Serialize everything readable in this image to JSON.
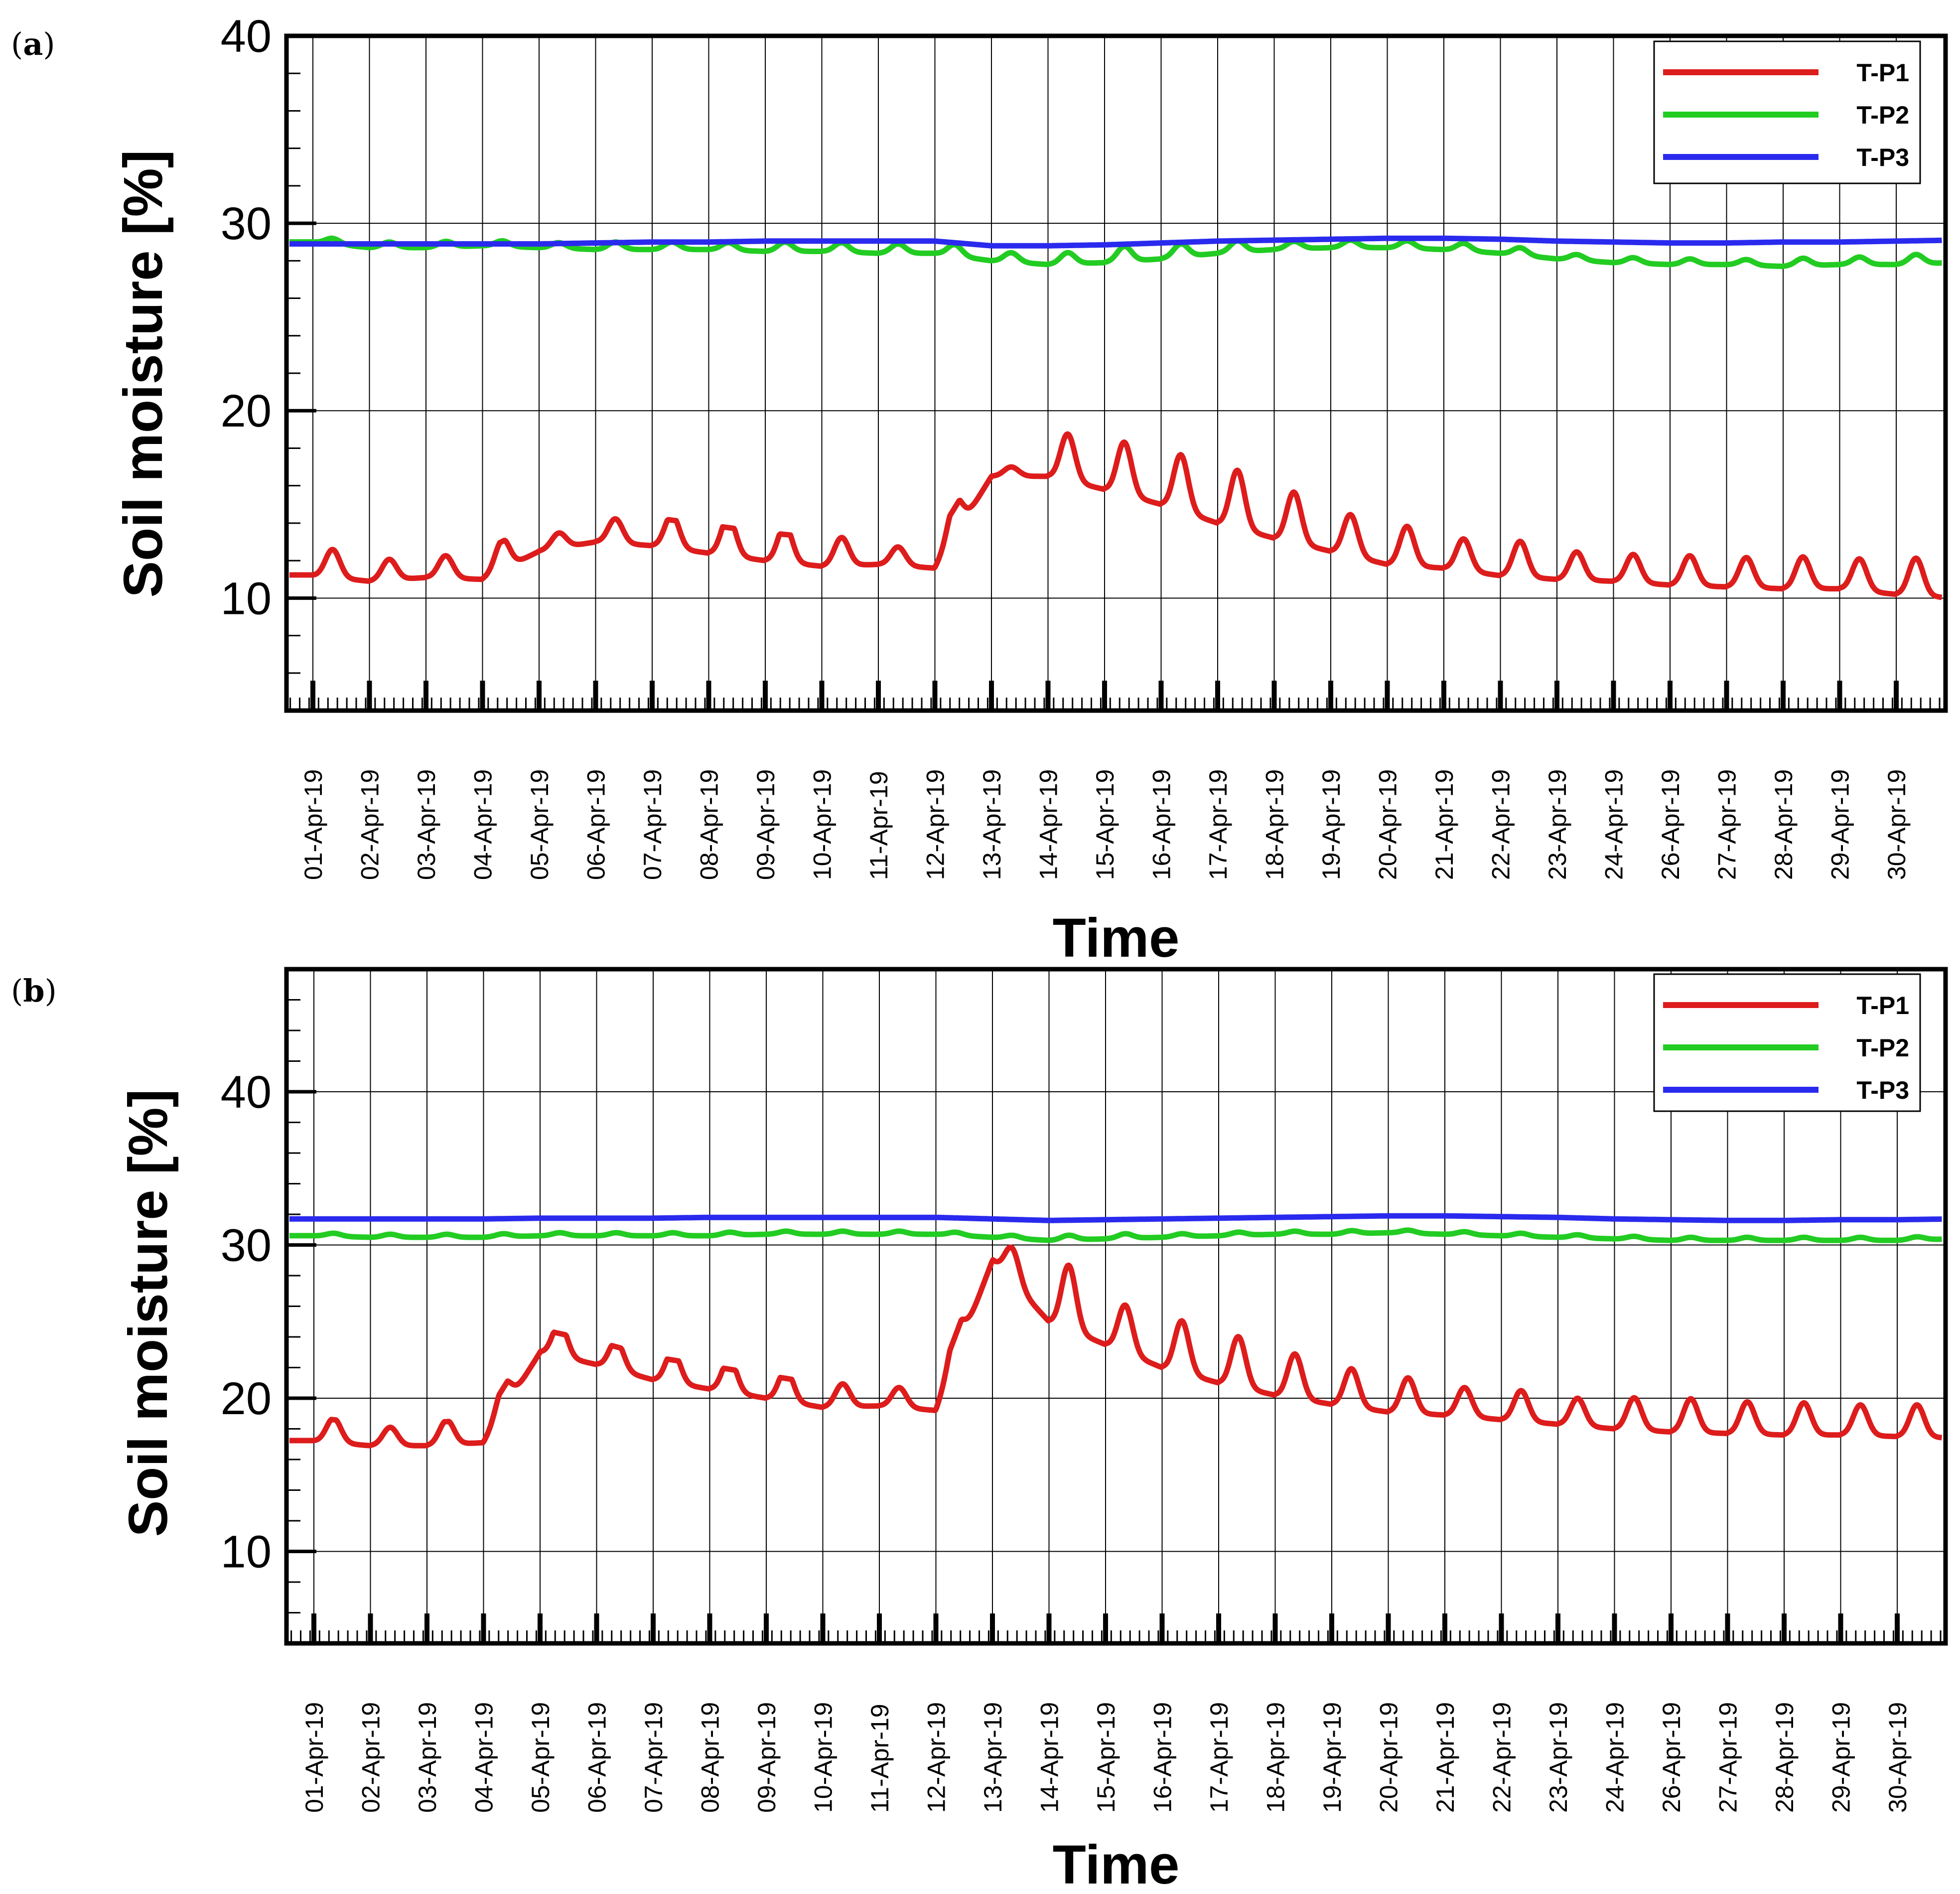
{
  "chart_data": [
    {
      "panel_label": "a",
      "type": "line",
      "xlabel": "Time",
      "ylabel": "Soil moisture [%]",
      "ylim": [
        4,
        40
      ],
      "yticks": [
        10,
        20,
        30,
        40
      ],
      "x_range_days": [
        0,
        29.9
      ],
      "grid": true,
      "legend_position": "top-right",
      "x_tick_labels": [
        "01-Apr-19",
        "02-Apr-19",
        "03-Apr-19",
        "04-Apr-19",
        "05-Apr-19",
        "06-Apr-19",
        "07-Apr-19",
        "08-Apr-19",
        "09-Apr-19",
        "10-Apr-19",
        "11-Apr-19",
        "12-Apr-19",
        "13-Apr-19",
        "14-Apr-19",
        "15-Apr-19",
        "16-Apr-19",
        "17-Apr-19",
        "18-Apr-19",
        "19-Apr-19",
        "20-Apr-19",
        "21-Apr-19",
        "22-Apr-19",
        "23-Apr-19",
        "24-Apr-19",
        "26-Apr-19",
        "27-Apr-19",
        "28-Apr-19",
        "29-Apr-19",
        "30-Apr-19"
      ],
      "series": [
        {
          "name": "T-P1",
          "color": "#dd1c1c",
          "baseline": [
            11.2,
            10.9,
            11.1,
            11.0,
            12.5,
            13.0,
            12.8,
            12.4,
            12.0,
            11.7,
            11.8,
            11.6,
            16.5,
            16.5,
            15.8,
            15.0,
            14.0,
            13.2,
            12.5,
            11.8,
            11.6,
            11.2,
            11.0,
            10.9,
            10.7,
            10.6,
            10.5,
            10.5,
            10.2,
            10.0
          ],
          "peaks": [
            12.7,
            12.0,
            12.3,
            12.6,
            13.3,
            14.3,
            14.6,
            14.5,
            14.0,
            13.2,
            12.8,
            13.5,
            17.0,
            19.0,
            18.6,
            18.0,
            17.1,
            15.9,
            14.7,
            13.9,
            13.3,
            13.1,
            12.5,
            12.4,
            12.3,
            12.2,
            12.2,
            12.2,
            12.2,
            11.9
          ],
          "step_day": 11.7
        },
        {
          "name": "T-P2",
          "color": "#22cc22",
          "baseline": [
            29.0,
            28.7,
            28.7,
            28.8,
            28.7,
            28.6,
            28.6,
            28.6,
            28.5,
            28.5,
            28.4,
            28.4,
            28.0,
            27.8,
            27.9,
            28.1,
            28.4,
            28.6,
            28.7,
            28.7,
            28.6,
            28.4,
            28.1,
            27.9,
            27.8,
            27.8,
            27.7,
            27.8,
            27.8,
            27.9
          ],
          "peaks": [
            29.3,
            29.0,
            29.0,
            29.1,
            29.0,
            29.0,
            29.0,
            29.0,
            29.0,
            29.0,
            28.9,
            29.0,
            28.5,
            28.4,
            28.7,
            28.8,
            29.0,
            29.0,
            29.1,
            29.1,
            29.0,
            28.8,
            28.4,
            28.2,
            28.1,
            28.1,
            28.1,
            28.2,
            28.3,
            28.3
          ]
        },
        {
          "name": "T-P3",
          "color": "#2a2aee",
          "baseline": [
            28.9,
            28.9,
            28.9,
            28.9,
            28.9,
            28.95,
            29.0,
            29.0,
            29.05,
            29.05,
            29.05,
            29.05,
            28.8,
            28.8,
            28.85,
            28.95,
            29.05,
            29.1,
            29.15,
            29.2,
            29.2,
            29.15,
            29.05,
            29.0,
            28.95,
            28.95,
            29.0,
            29.0,
            29.05,
            29.1
          ]
        }
      ]
    },
    {
      "panel_label": "b",
      "type": "line",
      "xlabel": "Time",
      "ylabel": "Soil moisture [%]",
      "ylim": [
        4,
        48
      ],
      "yticks": [
        10,
        20,
        30,
        40
      ],
      "x_range_days": [
        0,
        29.9
      ],
      "grid": true,
      "legend_position": "top-right",
      "x_tick_labels": [
        "01-Apr-19",
        "02-Apr-19",
        "03-Apr-19",
        "04-Apr-19",
        "05-Apr-19",
        "06-Apr-19",
        "07-Apr-19",
        "08-Apr-19",
        "09-Apr-19",
        "10-Apr-19",
        "11-Apr-19",
        "12-Apr-19",
        "13-Apr-19",
        "14-Apr-19",
        "15-Apr-19",
        "16-Apr-19",
        "17-Apr-19",
        "18-Apr-19",
        "19-Apr-19",
        "20-Apr-19",
        "21-Apr-19",
        "22-Apr-19",
        "23-Apr-19",
        "24-Apr-19",
        "26-Apr-19",
        "27-Apr-19",
        "28-Apr-19",
        "29-Apr-19",
        "30-Apr-19"
      ],
      "series": [
        {
          "name": "T-P1",
          "color": "#dd1c1c",
          "baseline": [
            17.2,
            16.9,
            16.9,
            17.1,
            23.0,
            22.2,
            21.2,
            20.6,
            20.0,
            19.4,
            19.5,
            19.2,
            29.0,
            25.0,
            23.5,
            22.0,
            21.0,
            20.2,
            19.6,
            19.1,
            18.9,
            18.6,
            18.3,
            18.0,
            17.8,
            17.7,
            17.6,
            17.6,
            17.5,
            17.4
          ],
          "peaks": [
            18.8,
            18.1,
            18.5,
            18.9,
            25.2,
            24.1,
            23.3,
            22.8,
            22.1,
            20.9,
            20.8,
            21.3,
            31.2,
            29.2,
            26.6,
            25.4,
            24.3,
            23.1,
            22.1,
            21.4,
            20.8,
            20.6,
            20.1,
            20.1,
            20.0,
            19.8,
            19.7,
            19.6,
            19.6,
            19.4
          ],
          "step_day": 11.6
        },
        {
          "name": "T-P2",
          "color": "#22cc22",
          "baseline": [
            30.6,
            30.5,
            30.5,
            30.5,
            30.6,
            30.6,
            30.6,
            30.6,
            30.7,
            30.7,
            30.7,
            30.7,
            30.5,
            30.3,
            30.4,
            30.5,
            30.6,
            30.7,
            30.7,
            30.8,
            30.7,
            30.6,
            30.5,
            30.4,
            30.3,
            30.3,
            30.3,
            30.3,
            30.3,
            30.4
          ],
          "peaks": [
            30.8,
            30.7,
            30.7,
            30.7,
            30.8,
            30.8,
            30.8,
            30.8,
            30.9,
            30.9,
            30.9,
            30.9,
            30.7,
            30.6,
            30.7,
            30.7,
            30.8,
            30.9,
            30.9,
            31.0,
            30.9,
            30.8,
            30.7,
            30.6,
            30.5,
            30.5,
            30.5,
            30.5,
            30.5,
            30.6
          ]
        },
        {
          "name": "T-P3",
          "color": "#2a2aee",
          "baseline": [
            31.7,
            31.7,
            31.7,
            31.7,
            31.75,
            31.75,
            31.75,
            31.8,
            31.8,
            31.8,
            31.8,
            31.8,
            31.7,
            31.6,
            31.65,
            31.7,
            31.75,
            31.8,
            31.85,
            31.9,
            31.9,
            31.85,
            31.8,
            31.7,
            31.65,
            31.6,
            31.6,
            31.65,
            31.65,
            31.7
          ]
        }
      ]
    }
  ]
}
